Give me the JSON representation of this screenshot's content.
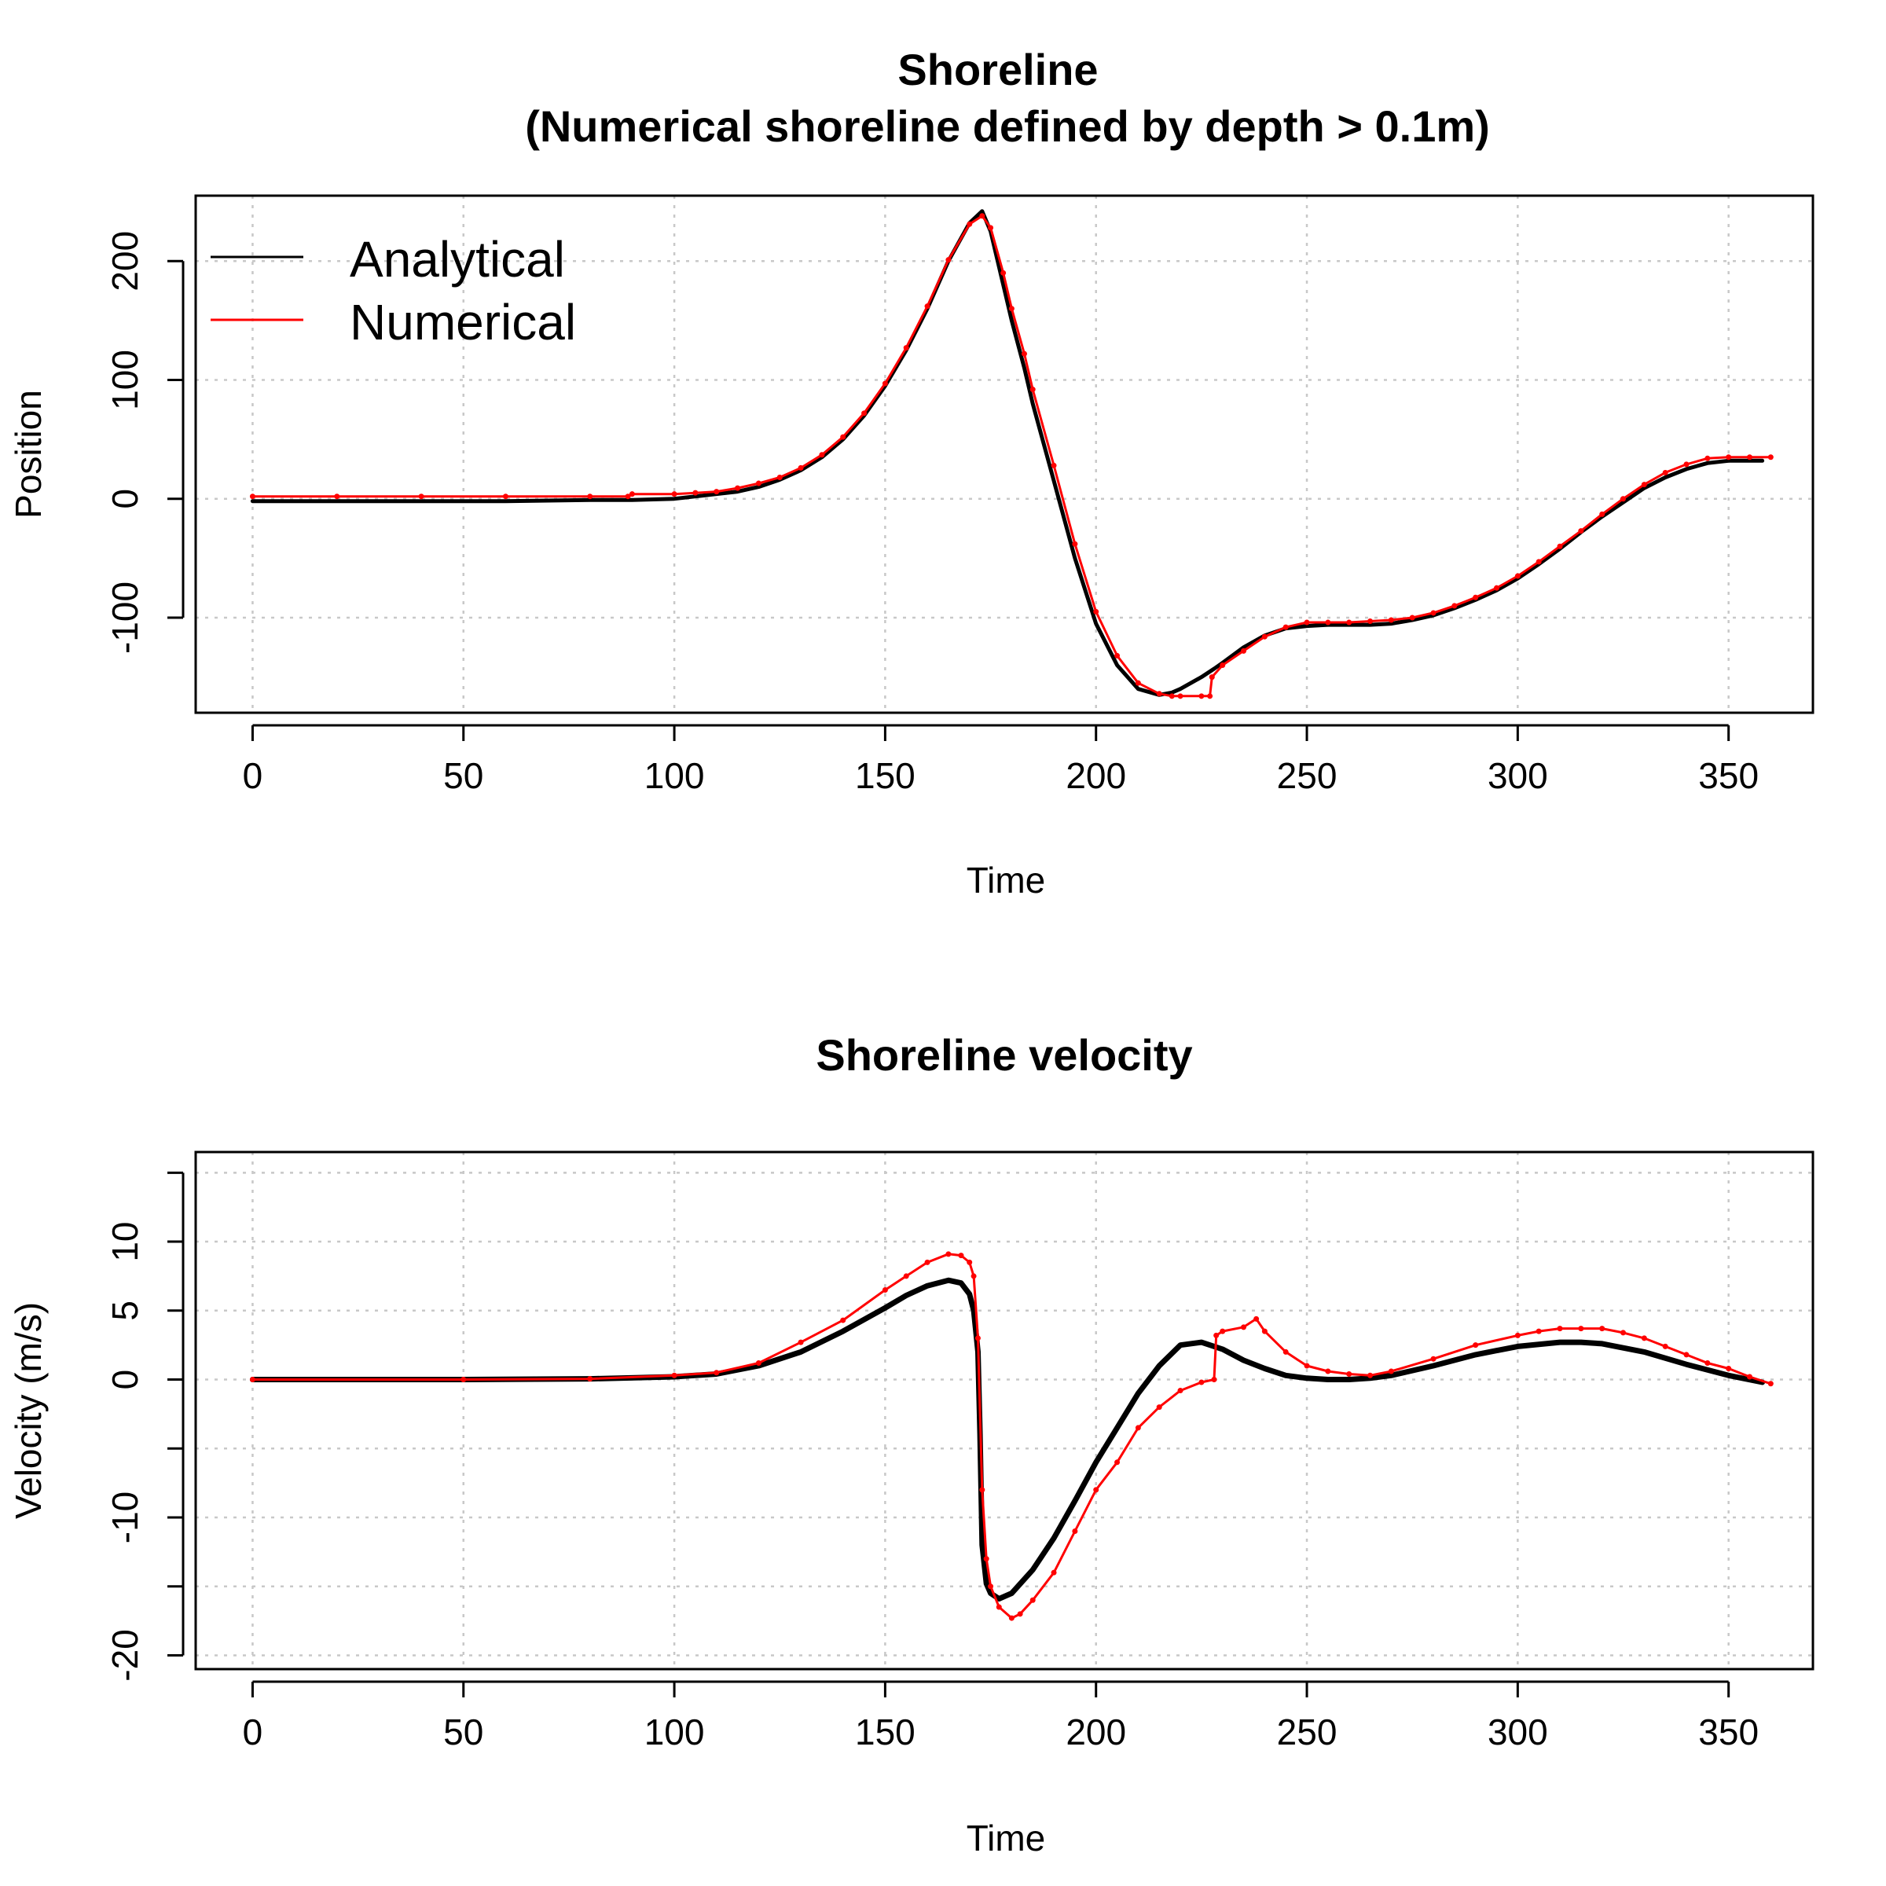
{
  "colors": {
    "analytical": "#000000",
    "numerical": "#ff0000",
    "grid": "#c8c8c8"
  },
  "chart_data": [
    {
      "type": "line",
      "title": "Shoreline",
      "subtitle": "(Numerical shoreline defined by depth > 0.1m)",
      "xlabel": "Time",
      "ylabel": "Position",
      "xlim": [
        -13.5,
        370
      ],
      "ylim": [
        -180,
        255
      ],
      "xticks": [
        0,
        50,
        100,
        150,
        200,
        250,
        300,
        350
      ],
      "yticks": [
        -100,
        0,
        100,
        200
      ],
      "grid": true,
      "legend": {
        "position": "top-left"
      },
      "series": [
        {
          "name": "Analytical",
          "color": "#000000",
          "x": [
            0,
            20,
            40,
            60,
            80,
            90,
            100,
            105,
            110,
            115,
            120,
            125,
            130,
            135,
            140,
            145,
            150,
            155,
            160,
            165,
            170,
            173,
            175,
            178,
            180,
            183,
            185,
            190,
            195,
            200,
            205,
            210,
            215,
            218,
            220,
            225,
            228,
            230,
            235,
            240,
            245,
            250,
            255,
            260,
            265,
            270,
            275,
            280,
            285,
            290,
            295,
            300,
            305,
            310,
            315,
            320,
            325,
            330,
            335,
            340,
            345,
            350,
            355,
            358
          ],
          "y": [
            -2,
            -2,
            -2,
            -2,
            -1,
            -1,
            0,
            2,
            4,
            6,
            10,
            16,
            24,
            35,
            50,
            70,
            95,
            125,
            160,
            200,
            232,
            242,
            225,
            180,
            150,
            110,
            80,
            15,
            -50,
            -105,
            -140,
            -160,
            -165,
            -163,
            -160,
            -150,
            -143,
            -138,
            -125,
            -115,
            -109,
            -107,
            -106,
            -106,
            -106,
            -105,
            -102,
            -98,
            -92,
            -85,
            -77,
            -67,
            -55,
            -42,
            -28,
            -15,
            -3,
            9,
            18,
            25,
            30,
            32,
            32,
            32
          ]
        },
        {
          "name": "Numerical",
          "color": "#ff0000",
          "x": [
            0,
            20,
            40,
            60,
            80,
            89,
            90,
            100,
            105,
            110,
            115,
            120,
            125,
            130,
            135,
            140,
            145,
            150,
            155,
            160,
            165,
            170,
            173,
            175,
            178,
            180,
            183,
            185,
            190,
            195,
            200,
            205,
            210,
            215,
            218,
            220,
            225,
            227,
            227.5,
            230,
            235,
            240,
            245,
            250,
            255,
            260,
            265,
            270,
            275,
            280,
            285,
            290,
            295,
            300,
            305,
            310,
            315,
            320,
            325,
            330,
            335,
            340,
            345,
            350,
            355,
            360
          ],
          "y": [
            2,
            2,
            2,
            2,
            2,
            2,
            4,
            4,
            5,
            6,
            9,
            13,
            18,
            26,
            37,
            52,
            72,
            97,
            127,
            162,
            201,
            231,
            238,
            228,
            190,
            160,
            122,
            92,
            28,
            -38,
            -95,
            -132,
            -155,
            -164,
            -166,
            -166,
            -166,
            -166,
            -150,
            -140,
            -128,
            -116,
            -108,
            -104,
            -104,
            -104,
            -103,
            -102,
            -100,
            -96,
            -90,
            -83,
            -75,
            -65,
            -53,
            -40,
            -27,
            -13,
            0,
            12,
            22,
            29,
            34,
            35,
            35,
            35
          ]
        }
      ]
    },
    {
      "type": "line",
      "title": "Shoreline velocity",
      "xlabel": "Time",
      "ylabel": "Velocity (m/s)",
      "xlim": [
        -13.5,
        370
      ],
      "ylim": [
        -21,
        16.5
      ],
      "xticks": [
        0,
        50,
        100,
        150,
        200,
        250,
        300,
        350
      ],
      "yticks": [
        -20,
        -15,
        -10,
        -5,
        0,
        5,
        10,
        15
      ],
      "ytick_labels": [
        "-20",
        "",
        "-10",
        "",
        "0",
        "5",
        "10",
        ""
      ],
      "grid": true,
      "series": [
        {
          "name": "Analytical",
          "color": "#000000",
          "x": [
            0,
            50,
            80,
            100,
            110,
            120,
            130,
            140,
            150,
            155,
            160,
            165,
            168,
            170,
            171,
            172,
            172.5,
            173,
            174,
            175,
            177,
            180,
            185,
            190,
            195,
            200,
            205,
            210,
            215,
            220,
            225,
            230,
            235,
            240,
            245,
            250,
            255,
            260,
            265,
            270,
            280,
            290,
            300,
            310,
            315,
            320,
            330,
            340,
            350,
            358
          ],
          "y": [
            0,
            0,
            0.05,
            0.2,
            0.4,
            1.0,
            2.0,
            3.5,
            5.2,
            6.1,
            6.8,
            7.2,
            7.0,
            6.2,
            5.0,
            2.0,
            -4.0,
            -12.0,
            -14.8,
            -15.5,
            -15.9,
            -15.5,
            -13.8,
            -11.5,
            -8.8,
            -6.0,
            -3.5,
            -1.0,
            1.0,
            2.5,
            2.7,
            2.2,
            1.4,
            0.8,
            0.3,
            0.1,
            0.0,
            0.0,
            0.1,
            0.3,
            1.0,
            1.8,
            2.4,
            2.7,
            2.7,
            2.6,
            2.0,
            1.1,
            0.3,
            -0.2
          ]
        },
        {
          "name": "Numerical",
          "color": "#ff0000",
          "x": [
            0,
            50,
            80,
            100,
            110,
            120,
            130,
            140,
            150,
            155,
            160,
            165,
            168,
            170,
            171,
            172,
            173,
            174,
            175,
            177,
            180,
            182,
            185,
            190,
            195,
            200,
            205,
            210,
            215,
            220,
            225,
            228,
            228.5,
            230,
            235,
            238,
            240,
            245,
            250,
            255,
            260,
            265,
            270,
            280,
            290,
            300,
            305,
            310,
            315,
            320,
            325,
            330,
            335,
            340,
            345,
            350,
            355,
            360
          ],
          "y": [
            0,
            0,
            0.05,
            0.3,
            0.5,
            1.2,
            2.7,
            4.3,
            6.5,
            7.5,
            8.5,
            9.1,
            9.0,
            8.5,
            7.5,
            3.0,
            -8.0,
            -13.0,
            -15.0,
            -16.5,
            -17.3,
            -17.0,
            -16.0,
            -14.0,
            -11.0,
            -8.0,
            -6.0,
            -3.5,
            -2.0,
            -0.8,
            -0.2,
            0.0,
            3.2,
            3.5,
            3.8,
            4.4,
            3.5,
            2.0,
            1.0,
            0.6,
            0.4,
            0.3,
            0.6,
            1.5,
            2.5,
            3.2,
            3.5,
            3.7,
            3.7,
            3.7,
            3.4,
            3.0,
            2.4,
            1.8,
            1.2,
            0.8,
            0.2,
            -0.3
          ]
        }
      ]
    }
  ]
}
